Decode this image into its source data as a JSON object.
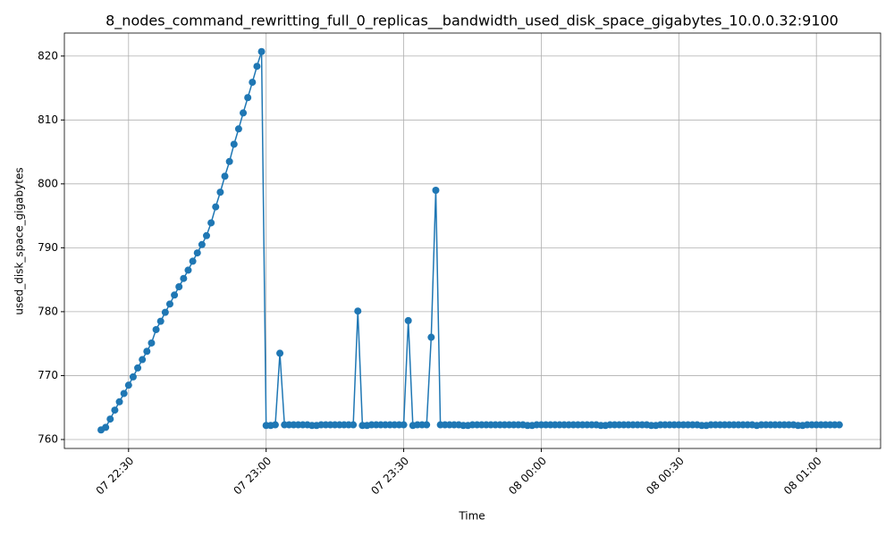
{
  "chart_data": {
    "type": "line",
    "title": "8_nodes_command_rewritting_full_0_replicas__bandwidth_used_disk_space_gigabytes_10.0.0.32:9100",
    "x_label": "Time",
    "y_label": "used_disk_space_gigabytes",
    "x": [
      "07 22:24",
      "07 22:25",
      "07 22:26",
      "07 22:27",
      "07 22:28",
      "07 22:29",
      "07 22:30",
      "07 22:31",
      "07 22:32",
      "07 22:33",
      "07 22:34",
      "07 22:35",
      "07 22:36",
      "07 22:37",
      "07 22:38",
      "07 22:39",
      "07 22:40",
      "07 22:41",
      "07 22:42",
      "07 22:43",
      "07 22:44",
      "07 22:45",
      "07 22:46",
      "07 22:47",
      "07 22:48",
      "07 22:49",
      "07 22:50",
      "07 22:51",
      "07 22:52",
      "07 22:53",
      "07 22:54",
      "07 22:55",
      "07 22:56",
      "07 22:57",
      "07 22:58",
      "07 22:59",
      "07 23:00",
      "07 23:01",
      "07 23:02",
      "07 23:03",
      "07 23:04",
      "07 23:05",
      "07 23:06",
      "07 23:07",
      "07 23:08",
      "07 23:09",
      "07 23:10",
      "07 23:11",
      "07 23:12",
      "07 23:13",
      "07 23:14",
      "07 23:15",
      "07 23:16",
      "07 23:17",
      "07 23:18",
      "07 23:19",
      "07 23:20",
      "07 23:21",
      "07 23:22",
      "07 23:23",
      "07 23:24",
      "07 23:25",
      "07 23:26",
      "07 23:27",
      "07 23:28",
      "07 23:29",
      "07 23:30",
      "07 23:31",
      "07 23:32",
      "07 23:33",
      "07 23:34",
      "07 23:35",
      "07 23:36",
      "07 23:37",
      "07 23:38",
      "07 23:39",
      "07 23:40",
      "07 23:41",
      "07 23:42",
      "07 23:43",
      "07 23:44",
      "07 23:45",
      "07 23:46",
      "07 23:47",
      "07 23:48",
      "07 23:49",
      "07 23:50",
      "07 23:51",
      "07 23:52",
      "07 23:53",
      "07 23:54",
      "07 23:55",
      "07 23:56",
      "07 23:57",
      "07 23:58",
      "07 23:59",
      "08 00:00",
      "08 00:01",
      "08 00:02",
      "08 00:03",
      "08 00:04",
      "08 00:05",
      "08 00:06",
      "08 00:07",
      "08 00:08",
      "08 00:09",
      "08 00:10",
      "08 00:11",
      "08 00:12",
      "08 00:13",
      "08 00:14",
      "08 00:15",
      "08 00:16",
      "08 00:17",
      "08 00:18",
      "08 00:19",
      "08 00:20",
      "08 00:21",
      "08 00:22",
      "08 00:23",
      "08 00:24",
      "08 00:25",
      "08 00:26",
      "08 00:27",
      "08 00:28",
      "08 00:29",
      "08 00:30",
      "08 00:31",
      "08 00:32",
      "08 00:33",
      "08 00:34",
      "08 00:35",
      "08 00:36",
      "08 00:37",
      "08 00:38",
      "08 00:39",
      "08 00:40",
      "08 00:41",
      "08 00:42",
      "08 00:43",
      "08 00:44",
      "08 00:45",
      "08 00:46",
      "08 00:47",
      "08 00:48",
      "08 00:49",
      "08 00:50",
      "08 00:51",
      "08 00:52",
      "08 00:53",
      "08 00:54",
      "08 00:55",
      "08 00:56",
      "08 00:57",
      "08 00:58",
      "08 00:59",
      "08 01:00",
      "08 01:01",
      "08 01:02",
      "08 01:03",
      "08 01:04",
      "08 01:05"
    ],
    "series": [
      {
        "color": "#1f77b4",
        "values": [
          761.5,
          761.9,
          763.2,
          764.6,
          765.9,
          767.2,
          768.5,
          769.8,
          771.2,
          772.5,
          773.8,
          775.1,
          777.2,
          778.5,
          779.9,
          781.2,
          782.6,
          783.9,
          785.2,
          786.5,
          787.9,
          789.2,
          790.5,
          791.9,
          793.9,
          796.4,
          798.7,
          801.2,
          803.5,
          806.2,
          808.6,
          811.1,
          813.5,
          815.9,
          818.4,
          820.7,
          762.2,
          762.2,
          762.3,
          773.5,
          762.3,
          762.3,
          762.3,
          762.3,
          762.3,
          762.3,
          762.2,
          762.2,
          762.3,
          762.3,
          762.3,
          762.3,
          762.3,
          762.3,
          762.3,
          762.3,
          780.1,
          762.2,
          762.2,
          762.3,
          762.3,
          762.3,
          762.3,
          762.3,
          762.3,
          762.3,
          762.3,
          778.6,
          762.2,
          762.3,
          762.3,
          762.3,
          776.0,
          799.0,
          762.3,
          762.3,
          762.3,
          762.3,
          762.3,
          762.2,
          762.2,
          762.3,
          762.3,
          762.3,
          762.3,
          762.3,
          762.3,
          762.3,
          762.3,
          762.3,
          762.3,
          762.3,
          762.3,
          762.2,
          762.2,
          762.3,
          762.3,
          762.3,
          762.3,
          762.3,
          762.3,
          762.3,
          762.3,
          762.3,
          762.3,
          762.3,
          762.3,
          762.3,
          762.3,
          762.2,
          762.2,
          762.3,
          762.3,
          762.3,
          762.3,
          762.3,
          762.3,
          762.3,
          762.3,
          762.3,
          762.2,
          762.2,
          762.3,
          762.3,
          762.3,
          762.3,
          762.3,
          762.3,
          762.3,
          762.3,
          762.3,
          762.2,
          762.2,
          762.3,
          762.3,
          762.3,
          762.3,
          762.3,
          762.3,
          762.3,
          762.3,
          762.3,
          762.3,
          762.2,
          762.3,
          762.3,
          762.3,
          762.3,
          762.3,
          762.3,
          762.3,
          762.3,
          762.2,
          762.2,
          762.3,
          762.3,
          762.3,
          762.3,
          762.3,
          762.3,
          762.3,
          762.3
        ]
      }
    ],
    "xlim": [
      "07 22:16",
      "08 01:14"
    ],
    "xticks": [
      "07 22:30",
      "07 23:00",
      "07 23:30",
      "08 00:00",
      "08 00:30",
      "08 01:00"
    ],
    "ylim": [
      758.6,
      823.6
    ],
    "yticks": [
      760,
      770,
      780,
      790,
      800,
      810,
      820
    ],
    "grid": true
  }
}
